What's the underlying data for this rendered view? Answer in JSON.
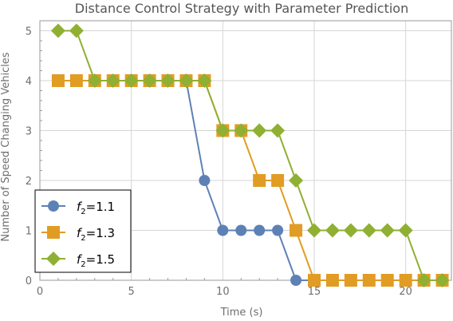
{
  "chart_data": {
    "type": "line",
    "title": "Distance Control Strategy with Parameter Prediction",
    "xlabel": "Time (s)",
    "ylabel": "Number of Speed Changing Vehicles",
    "xlim": [
      0,
      22.5
    ],
    "ylim": [
      0,
      5.2
    ],
    "xticks": [
      0,
      5,
      10,
      15,
      20
    ],
    "yticks": [
      0,
      1,
      2,
      3,
      4,
      5
    ],
    "grid": true,
    "legend_position": "bottom-left",
    "series": [
      {
        "name": "f2=1.1",
        "label_base": "f",
        "label_sub": "2",
        "label_value": "=1.1",
        "marker": "circle",
        "color": "#5e81b5",
        "x": [
          1,
          2,
          3,
          4,
          5,
          6,
          7,
          8,
          9,
          10,
          11,
          12,
          13,
          14,
          15,
          16,
          17,
          18,
          19,
          20,
          21,
          22
        ],
        "y": [
          4,
          4,
          4,
          4,
          4,
          4,
          4,
          4,
          2,
          1,
          1,
          1,
          1,
          0,
          0,
          0,
          0,
          0,
          0,
          0,
          0,
          0
        ]
      },
      {
        "name": "f2=1.3",
        "label_base": "f",
        "label_sub": "2",
        "label_value": "=1.3",
        "marker": "square",
        "color": "#e19c24",
        "x": [
          1,
          2,
          3,
          4,
          5,
          6,
          7,
          8,
          9,
          10,
          11,
          12,
          13,
          14,
          15,
          16,
          17,
          18,
          19,
          20,
          21,
          22
        ],
        "y": [
          4,
          4,
          4,
          4,
          4,
          4,
          4,
          4,
          4,
          3,
          3,
          2,
          2,
          1,
          0,
          0,
          0,
          0,
          0,
          0,
          0,
          0
        ]
      },
      {
        "name": "f2=1.5",
        "label_base": "f",
        "label_sub": "2",
        "label_value": "=1.5",
        "marker": "diamond",
        "color": "#8fb032",
        "x": [
          1,
          2,
          3,
          4,
          5,
          6,
          7,
          8,
          9,
          10,
          11,
          12,
          13,
          14,
          15,
          16,
          17,
          18,
          19,
          20,
          21,
          22
        ],
        "y": [
          5,
          5,
          4,
          4,
          4,
          4,
          4,
          4,
          4,
          3,
          3,
          3,
          3,
          2,
          1,
          1,
          1,
          1,
          1,
          1,
          0,
          0
        ]
      }
    ]
  }
}
